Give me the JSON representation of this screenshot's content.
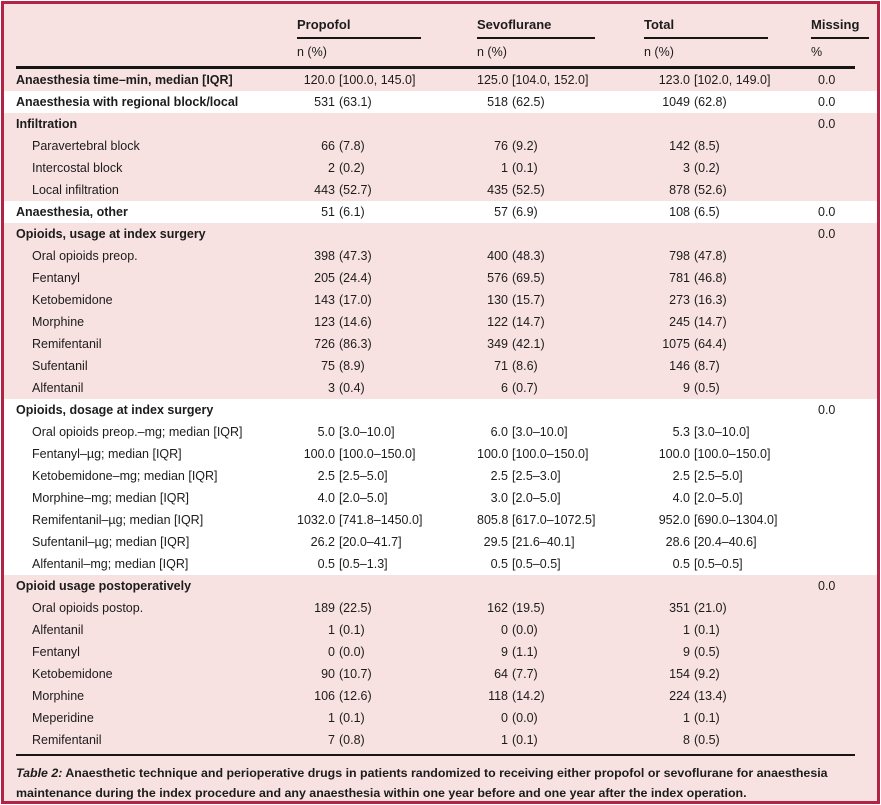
{
  "colors": {
    "background_pink": "#f8e1e1",
    "border_crimson": "#b22346",
    "row_white": "#ffffff",
    "rule_black": "#161616",
    "text": "#1c1c1c"
  },
  "table": {
    "columns": {
      "propofol": "Propofol",
      "sevoflurane": "Sevoflurane",
      "total": "Total",
      "missing": "Missing"
    },
    "subheaders": {
      "n_pct_1": "n (%)",
      "n_pct_2": "n (%)",
      "n_pct_3": "n (%)",
      "pct": "%"
    },
    "rows": [
      {
        "label": "Anaesthesia time–min, median [IQR]",
        "level": "section",
        "bold": true,
        "style": "pink",
        "propofol": "120.0 [100.0, 145.0]",
        "sevoflurane": "125.0 [104.0, 152.0]",
        "total": "123.0 [102.0, 149.0]",
        "missing": "0.0"
      },
      {
        "label": "Anaesthesia with regional block/local",
        "level": "section",
        "bold": true,
        "style": "white",
        "propofol": "531 (63.1)",
        "sevoflurane": "518 (62.5)",
        "total": "1049 (62.8)",
        "missing": "0.0"
      },
      {
        "label": "Infiltration",
        "level": "section",
        "bold": true,
        "style": "pink",
        "propofol": "",
        "sevoflurane": "",
        "total": "",
        "missing": "0.0"
      },
      {
        "label": "Paravertebral block",
        "level": "item",
        "bold": false,
        "style": "pink",
        "propofol": "66 (7.8)",
        "sevoflurane": "76 (9.2)",
        "total": "142 (8.5)",
        "missing": ""
      },
      {
        "label": "Intercostal block",
        "level": "item",
        "bold": false,
        "style": "pink",
        "propofol": "2 (0.2)",
        "sevoflurane": "1 (0.1)",
        "total": "3 (0.2)",
        "missing": ""
      },
      {
        "label": "Local infiltration",
        "level": "item",
        "bold": false,
        "style": "pink",
        "propofol": "443 (52.7)",
        "sevoflurane": "435 (52.5)",
        "total": "878 (52.6)",
        "missing": ""
      },
      {
        "label": "Anaesthesia, other",
        "level": "section",
        "bold": true,
        "style": "white",
        "propofol": "51 (6.1)",
        "sevoflurane": "57 (6.9)",
        "total": "108 (6.5)",
        "missing": "0.0"
      },
      {
        "label": "Opioids, usage at index surgery",
        "level": "section",
        "bold": true,
        "style": "pink",
        "propofol": "",
        "sevoflurane": "",
        "total": "",
        "missing": "0.0"
      },
      {
        "label": "Oral opioids preop.",
        "level": "item",
        "bold": false,
        "style": "pink",
        "propofol": "398 (47.3)",
        "sevoflurane": "400 (48.3)",
        "total": "798 (47.8)",
        "missing": ""
      },
      {
        "label": "Fentanyl",
        "level": "item",
        "bold": false,
        "style": "pink",
        "propofol": "205 (24.4)",
        "sevoflurane": "576 (69.5)",
        "total": "781 (46.8)",
        "missing": ""
      },
      {
        "label": "Ketobemidone",
        "level": "item",
        "bold": false,
        "style": "pink",
        "propofol": "143 (17.0)",
        "sevoflurane": "130 (15.7)",
        "total": "273 (16.3)",
        "missing": ""
      },
      {
        "label": "Morphine",
        "level": "item",
        "bold": false,
        "style": "pink",
        "propofol": "123 (14.6)",
        "sevoflurane": "122 (14.7)",
        "total": "245 (14.7)",
        "missing": ""
      },
      {
        "label": "Remifentanil",
        "level": "item",
        "bold": false,
        "style": "pink",
        "propofol": "726 (86.3)",
        "sevoflurane": "349 (42.1)",
        "total": "1075 (64.4)",
        "missing": ""
      },
      {
        "label": "Sufentanil",
        "level": "item",
        "bold": false,
        "style": "pink",
        "propofol": "75 (8.9)",
        "sevoflurane": "71 (8.6)",
        "total": "146 (8.7)",
        "missing": ""
      },
      {
        "label": "Alfentanil",
        "level": "item",
        "bold": false,
        "style": "pink",
        "propofol": "3 (0.4)",
        "sevoflurane": "6 (0.7)",
        "total": "9 (0.5)",
        "missing": ""
      },
      {
        "label": "Opioids, dosage at index surgery",
        "level": "section",
        "bold": true,
        "style": "white",
        "propofol": "",
        "sevoflurane": "",
        "total": "",
        "missing": "0.0"
      },
      {
        "label": "Oral opioids preop.–mg; median [IQR]",
        "level": "item",
        "bold": false,
        "style": "white",
        "propofol": "5.0 [3.0–10.0]",
        "sevoflurane": "6.0 [3.0–10.0]",
        "total": "5.3 [3.0–10.0]",
        "missing": ""
      },
      {
        "label": "Fentanyl–µg; median [IQR]",
        "level": "item",
        "bold": false,
        "style": "white",
        "propofol": "100.0 [100.0–150.0]",
        "sevoflurane": "100.0 [100.0–150.0]",
        "total": "100.0 [100.0–150.0]",
        "missing": ""
      },
      {
        "label": "Ketobemidone–mg; median [IQR]",
        "level": "item",
        "bold": false,
        "style": "white",
        "propofol": "2.5 [2.5–5.0]",
        "sevoflurane": "2.5 [2.5–3.0]",
        "total": "2.5 [2.5–5.0]",
        "missing": ""
      },
      {
        "label": "Morphine–mg; median [IQR]",
        "level": "item",
        "bold": false,
        "style": "white",
        "propofol": "4.0 [2.0–5.0]",
        "sevoflurane": "3.0 [2.0–5.0]",
        "total": "4.0 [2.0–5.0]",
        "missing": ""
      },
      {
        "label": "Remifentanil–µg; median [IQR]",
        "level": "item",
        "bold": false,
        "style": "white",
        "propofol": "1032.0 [741.8–1450.0]",
        "sevoflurane": "805.8 [617.0–1072.5]",
        "total": "952.0 [690.0–1304.0]",
        "missing": ""
      },
      {
        "label": "Sufentanil–µg; median [IQR]",
        "level": "item",
        "bold": false,
        "style": "white",
        "propofol": "26.2 [20.0–41.7]",
        "sevoflurane": "29.5 [21.6–40.1]",
        "total": "28.6 [20.4–40.6]",
        "missing": ""
      },
      {
        "label": "Alfentanil–mg; median [IQR]",
        "level": "item",
        "bold": false,
        "style": "white",
        "propofol": "0.5 [0.5–1.3]",
        "sevoflurane": "0.5 [0.5–0.5]",
        "total": "0.5 [0.5–0.5]",
        "missing": ""
      },
      {
        "label": "Opioid usage postoperatively",
        "level": "section",
        "bold": true,
        "style": "pink",
        "propofol": "",
        "sevoflurane": "",
        "total": "",
        "missing": "0.0"
      },
      {
        "label": "Oral opioids postop.",
        "level": "item",
        "bold": false,
        "style": "pink",
        "propofol": "189 (22.5)",
        "sevoflurane": "162 (19.5)",
        "total": "351 (21.0)",
        "missing": ""
      },
      {
        "label": "Alfentanil",
        "level": "item",
        "bold": false,
        "style": "pink",
        "propofol": "1 (0.1)",
        "sevoflurane": "0 (0.0)",
        "total": "1 (0.1)",
        "missing": ""
      },
      {
        "label": "Fentanyl",
        "level": "item",
        "bold": false,
        "style": "pink",
        "propofol": "0 (0.0)",
        "sevoflurane": "9 (1.1)",
        "total": "9 (0.5)",
        "missing": ""
      },
      {
        "label": "Ketobemidone",
        "level": "item",
        "bold": false,
        "style": "pink",
        "propofol": "90 (10.7)",
        "sevoflurane": "64 (7.7)",
        "total": "154 (9.2)",
        "missing": ""
      },
      {
        "label": "Morphine",
        "level": "item",
        "bold": false,
        "style": "pink",
        "propofol": "106 (12.6)",
        "sevoflurane": "118 (14.2)",
        "total": "224 (13.4)",
        "missing": ""
      },
      {
        "label": "Meperidine",
        "level": "item",
        "bold": false,
        "style": "pink",
        "propofol": "1 (0.1)",
        "sevoflurane": "0 (0.0)",
        "total": "1 (0.1)",
        "missing": ""
      },
      {
        "label": "Remifentanil",
        "level": "item",
        "bold": false,
        "style": "pink",
        "propofol": "7 (0.8)",
        "sevoflurane": "1 (0.1)",
        "total": "8 (0.5)",
        "missing": ""
      }
    ]
  },
  "caption": {
    "prefix": "Table 2:",
    "text": "Anaesthetic technique and perioperative drugs in patients randomized to receiving either propofol or sevoflurane for anaesthesia maintenance during the index procedure and any anaesthesia within one year before and one year after the index operation."
  }
}
